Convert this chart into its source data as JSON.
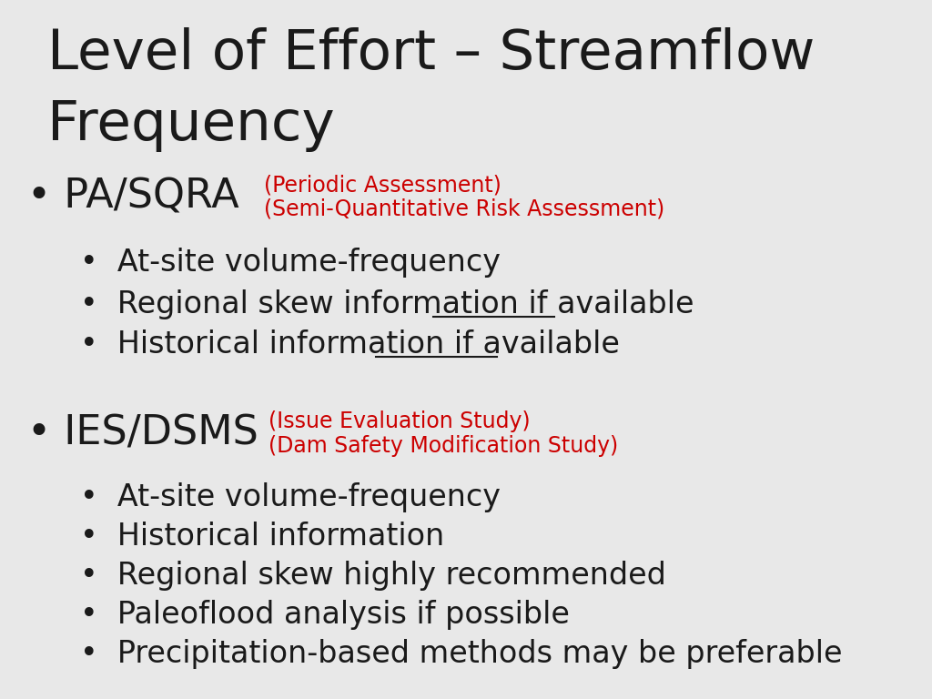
{
  "background_color": "#E8E8E8",
  "title_line1": "Level of Effort – Streamflow",
  "title_line2": "Frequency",
  "title_color": "#1a1a1a",
  "title_fontsize": 44,
  "title_font": "DejaVu Sans",
  "section1_bullet": "• PA/SQRA",
  "section1_red_line1": "(Periodic Assessment)",
  "section1_red_line2": "(Semi-Quantitative Risk Assessment)",
  "section2_bullet": "• IES/DSMS",
  "section2_red_line1": "(Issue Evaluation Study)",
  "section2_red_line2": "(Dam Safety Modification Study)",
  "section1_sub": [
    "•  At-site volume-frequency",
    "•  Regional skew information ",
    "•  Historical information "
  ],
  "section1_underline_text": [
    "if available",
    "if available"
  ],
  "section2_sub": [
    "•  At-site volume-frequency",
    "•  Historical information",
    "•  Regional skew highly recommended",
    "•  Paleoflood analysis if possible",
    "•  Precipitation-based methods may be preferable"
  ],
  "bullet_color": "#1a1a1a",
  "red_color": "#cc0000",
  "sub_color": "#1a1a1a",
  "bullet_fontsize": 32,
  "sub_fontsize": 24,
  "red_fontsize": 17,
  "mono_font": "Courier New"
}
